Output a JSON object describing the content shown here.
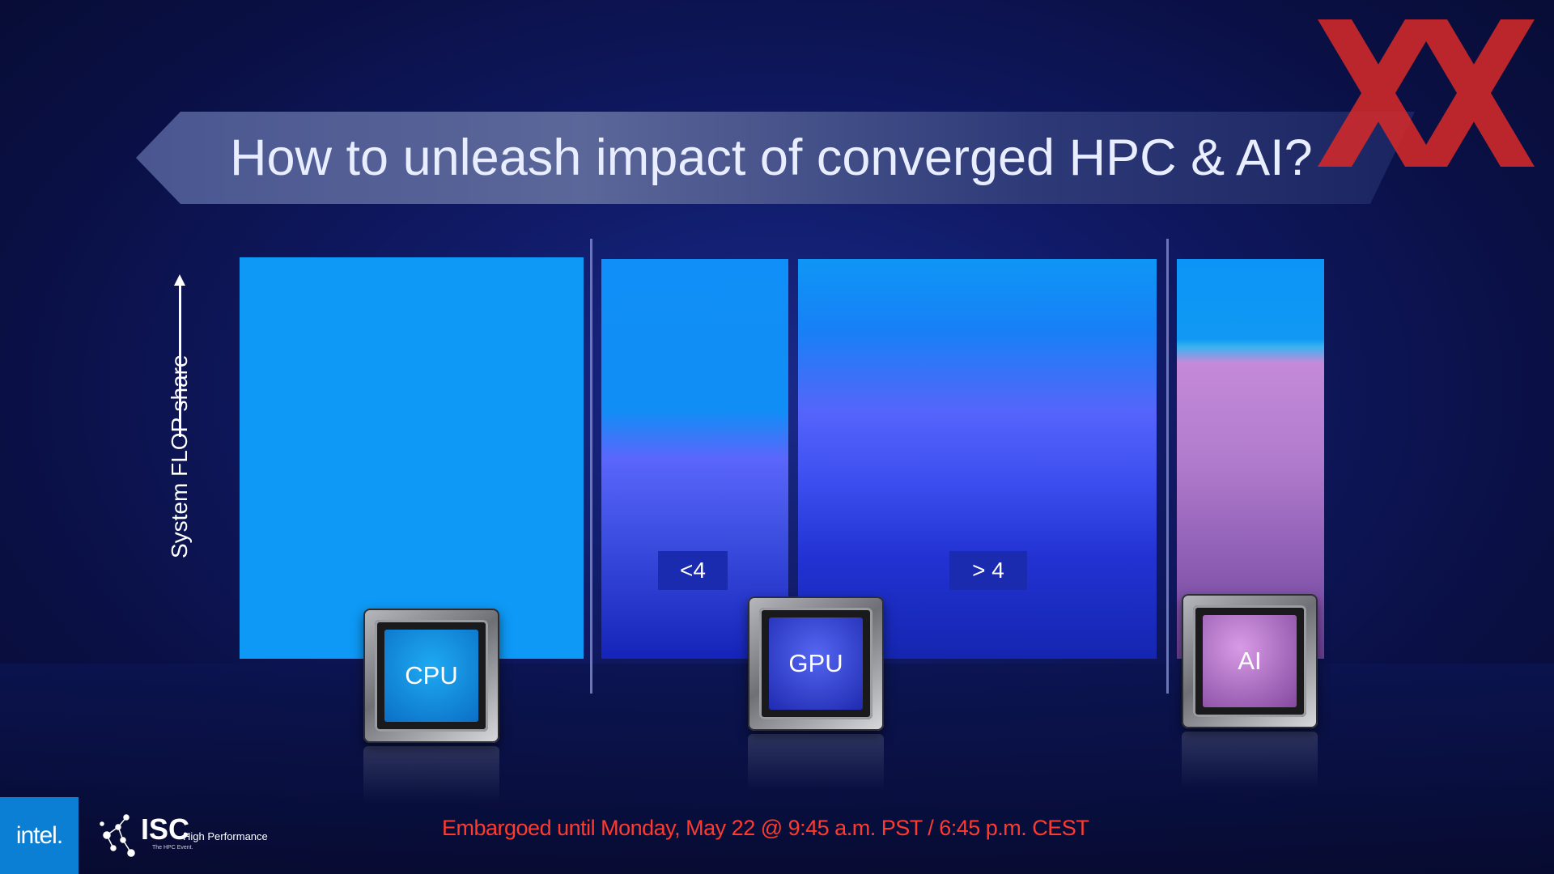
{
  "slide": {
    "title": "How to unleash impact of converged HPC & AI?",
    "axis_label": "System FLOP share",
    "tags": {
      "less": "<4",
      "greater": "> 4"
    },
    "chips": {
      "cpu": "CPU",
      "gpu": "GPU",
      "ai": "AI"
    },
    "footer": {
      "intel_logo": "intel.",
      "isc_logo": "ISC",
      "isc_tagline": "High Performance",
      "isc_subtagline": "The HPC Event.",
      "embargo": "Embargoed until Monday, May 22 @ 9:45 a.m. PST / 6:45 p.m. CEST"
    }
  },
  "colors": {
    "cpu_block": "#0d99f5",
    "gpu_block": "#3d4ff0",
    "ai_block": "#b27ccd",
    "embargo_text": "#ff3a2e",
    "intel_blue": "#0b7fd4",
    "watermark": "#d42a2a"
  },
  "icons": {
    "watermark": "red-double-x-watermark",
    "isc": "network-nodes-icon"
  }
}
